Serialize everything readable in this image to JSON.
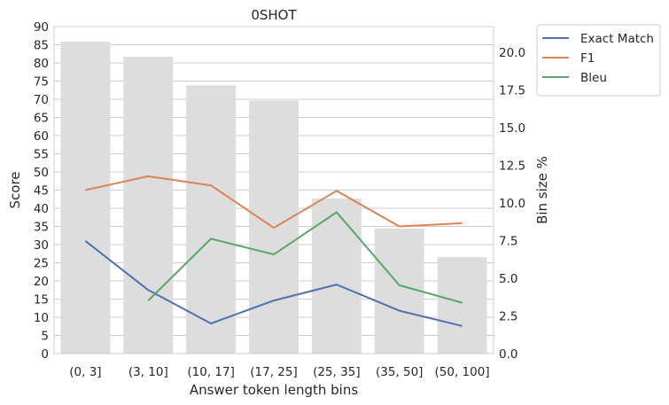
{
  "chart_data": {
    "type": "bar+line",
    "title": "0SHOT",
    "xlabel": "Answer token length bins",
    "ylabel": "Score",
    "y2label": "Bin size %",
    "categories": [
      "(0, 3]",
      "(3, 10]",
      "(10, 17]",
      "(17, 25]",
      "(25, 35]",
      "(35, 50]",
      "(50, 100]"
    ],
    "ylim": [
      0,
      90
    ],
    "yticks": [
      0,
      5,
      10,
      15,
      20,
      25,
      30,
      35,
      40,
      45,
      50,
      55,
      60,
      65,
      70,
      75,
      80,
      85,
      90
    ],
    "y2lim": [
      0,
      21.7
    ],
    "y2ticks": [
      "0.0",
      "2.5",
      "5.0",
      "7.5",
      "10.0",
      "12.5",
      "15.0",
      "17.5",
      "20.0"
    ],
    "bars": {
      "axis": "right",
      "color": "#dddddd",
      "values": [
        20.7,
        19.7,
        17.8,
        16.8,
        10.3,
        8.3,
        6.4
      ]
    },
    "series": [
      {
        "name": "Exact Match",
        "color": "#4c72b0",
        "values": [
          31,
          17.5,
          8.3,
          14.6,
          19,
          11.8,
          7.6
        ]
      },
      {
        "name": "F1",
        "color": "#dd8452",
        "values": [
          45,
          48.8,
          46.3,
          34.6,
          44.8,
          35,
          35.9
        ]
      },
      {
        "name": "Bleu",
        "color": "#55a868",
        "values": [
          null,
          14.6,
          31.6,
          27.3,
          38.9,
          18.8,
          14
        ]
      }
    ],
    "grid": true,
    "legend_position": "outside-top-right"
  }
}
